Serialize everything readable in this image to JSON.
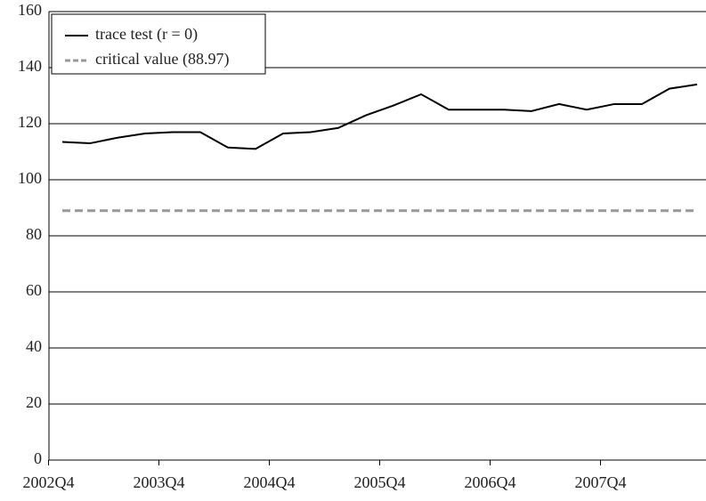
{
  "chart_data": {
    "type": "line",
    "categories": [
      "2002Q4",
      null,
      null,
      null,
      "2003Q4",
      null,
      null,
      null,
      "2004Q4",
      null,
      null,
      null,
      "2005Q4",
      null,
      null,
      null,
      "2006Q4",
      null,
      null,
      null,
      "2007Q4",
      null,
      null,
      null
    ],
    "series": [
      {
        "name": "trace test (r = 0)",
        "color": "#000000",
        "dash": false,
        "values": [
          113.5,
          113,
          115,
          116.5,
          117,
          117,
          111.5,
          111,
          116.5,
          117,
          118.5,
          123,
          126.5,
          130.5,
          125,
          125,
          125,
          124.5,
          127,
          125,
          127,
          127,
          132.5,
          134
        ]
      },
      {
        "name": "critical value (88.97)",
        "color": "#999999",
        "dash": true,
        "values": [
          88.97,
          88.97,
          88.97,
          88.97,
          88.97,
          88.97,
          88.97,
          88.97,
          88.97,
          88.97,
          88.97,
          88.97,
          88.97,
          88.97,
          88.97,
          88.97,
          88.97,
          88.97,
          88.97,
          88.97,
          88.97,
          88.97,
          88.97,
          88.97
        ]
      }
    ],
    "ylim": [
      0,
      160
    ],
    "yticks": [
      0,
      20,
      40,
      60,
      80,
      100,
      120,
      140,
      160
    ],
    "grid": true,
    "legend": "top-left"
  }
}
